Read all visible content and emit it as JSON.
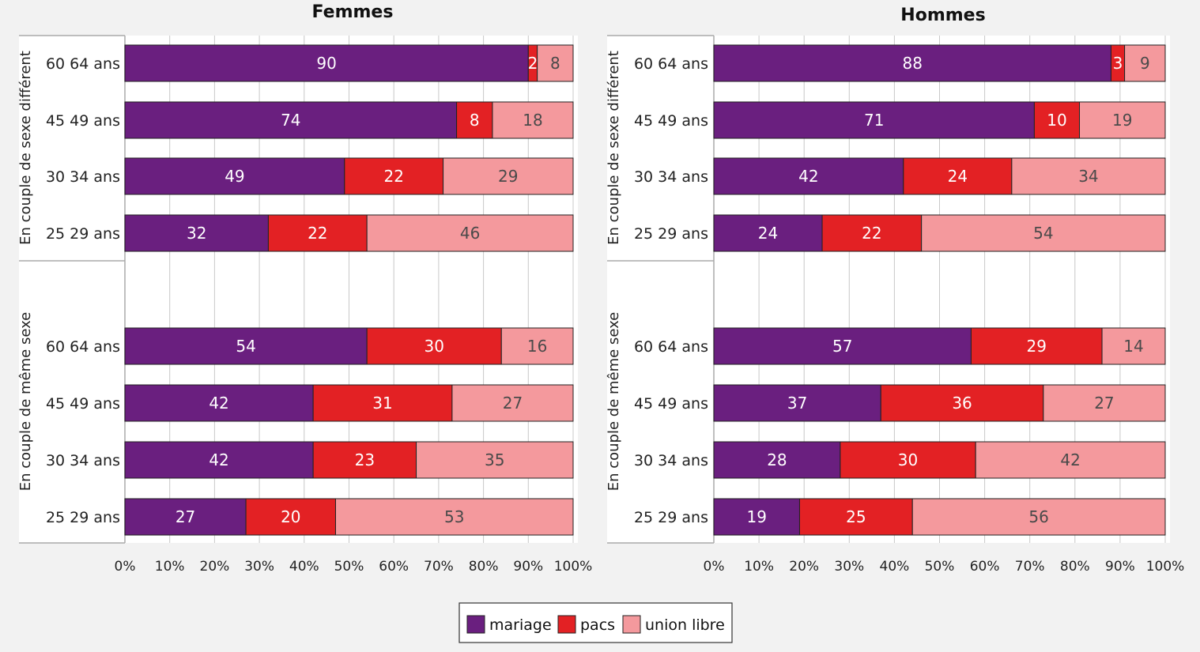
{
  "colors": {
    "mariage": "#6a1f7f",
    "pacs": "#e32124",
    "union_libre": "#f4999d",
    "grid": "#c8c8c8"
  },
  "legend": [
    {
      "key": "mariage",
      "label": "mariage"
    },
    {
      "key": "pacs",
      "label": "pacs"
    },
    {
      "key": "union_libre",
      "label": "union libre"
    }
  ],
  "chart_data": [
    {
      "type": "bar",
      "orientation": "horizontal",
      "stacked": true,
      "title": "Femmes",
      "xlim": [
        0,
        100
      ],
      "xticks": [
        "0%",
        "10%",
        "20%",
        "30%",
        "40%",
        "50%",
        "60%",
        "70%",
        "80%",
        "90%",
        "100%"
      ],
      "groups": [
        {
          "label": "En couple de sexe différent",
          "categories": [
            "60 64 ans",
            "45 49 ans",
            "30 34 ans",
            "25 29 ans"
          ],
          "series": [
            {
              "name": "mariage",
              "values": [
                90,
                74,
                49,
                32
              ]
            },
            {
              "name": "pacs",
              "values": [
                2,
                8,
                22,
                22
              ]
            },
            {
              "name": "union libre",
              "values": [
                8,
                18,
                29,
                46
              ]
            }
          ]
        },
        {
          "label": "En couple de même sexe",
          "categories": [
            "60 64 ans",
            "45 49 ans",
            "30 34 ans",
            "25 29 ans"
          ],
          "series": [
            {
              "name": "mariage",
              "values": [
                54,
                42,
                42,
                27
              ]
            },
            {
              "name": "pacs",
              "values": [
                30,
                31,
                23,
                20
              ]
            },
            {
              "name": "union libre",
              "values": [
                16,
                27,
                35,
                53
              ]
            }
          ]
        }
      ]
    },
    {
      "type": "bar",
      "orientation": "horizontal",
      "stacked": true,
      "title": "Hommes",
      "xlim": [
        0,
        100
      ],
      "xticks": [
        "0%",
        "10%",
        "20%",
        "30%",
        "40%",
        "50%",
        "60%",
        "70%",
        "80%",
        "90%",
        "100%"
      ],
      "groups": [
        {
          "label": "En couple de sexe différent",
          "categories": [
            "60 64 ans",
            "45 49 ans",
            "30 34 ans",
            "25 29 ans"
          ],
          "series": [
            {
              "name": "mariage",
              "values": [
                88,
                71,
                42,
                24
              ]
            },
            {
              "name": "pacs",
              "values": [
                3,
                10,
                24,
                22
              ]
            },
            {
              "name": "union libre",
              "values": [
                9,
                19,
                34,
                54
              ]
            }
          ]
        },
        {
          "label": "En couple de même sexe",
          "categories": [
            "60 64 ans",
            "45 49 ans",
            "30 34 ans",
            "25 29 ans"
          ],
          "series": [
            {
              "name": "mariage",
              "values": [
                57,
                37,
                28,
                19
              ]
            },
            {
              "name": "pacs",
              "values": [
                29,
                36,
                30,
                25
              ]
            },
            {
              "name": "union libre",
              "values": [
                14,
                27,
                42,
                56
              ]
            }
          ]
        }
      ]
    }
  ]
}
